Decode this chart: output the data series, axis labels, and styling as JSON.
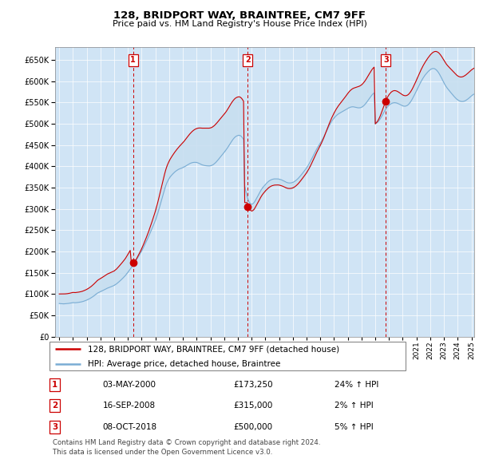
{
  "title": "128, BRIDPORT WAY, BRAINTREE, CM7 9FF",
  "subtitle": "Price paid vs. HM Land Registry's House Price Index (HPI)",
  "legend_line1": "128, BRIDPORT WAY, BRAINTREE, CM7 9FF (detached house)",
  "legend_line2": "HPI: Average price, detached house, Braintree",
  "footer1": "Contains HM Land Registry data © Crown copyright and database right 2024.",
  "footer2": "This data is licensed under the Open Government Licence v3.0.",
  "sales": [
    {
      "label": "1",
      "date": "03-MAY-2000",
      "price": 173250,
      "pct": "24%",
      "dir": "↑",
      "x": 2000.37
    },
    {
      "label": "2",
      "date": "16-SEP-2008",
      "price": 315000,
      "pct": "2%",
      "dir": "↑",
      "x": 2008.71
    },
    {
      "label": "3",
      "date": "08-OCT-2018",
      "price": 500000,
      "pct": "5%",
      "dir": "↑",
      "x": 2018.77
    }
  ],
  "red_color": "#cc0000",
  "blue_color": "#7aadd4",
  "fill_blue": "#d0e4f5",
  "ylim": [
    0,
    680000
  ],
  "ytick_step": 50000,
  "xlim_left": 1994.7,
  "xlim_right": 2025.2,
  "background_color": "#e8f0f8",
  "hpi_monthly": [
    78000,
    77800,
    77600,
    77400,
    77300,
    77500,
    77700,
    78000,
    78300,
    78700,
    79100,
    79600,
    80100,
    80000,
    79900,
    80100,
    80400,
    80800,
    81200,
    81700,
    82300,
    83100,
    84000,
    85000,
    86100,
    87300,
    88600,
    90100,
    91700,
    93500,
    95400,
    97400,
    99500,
    101700,
    103400,
    104600,
    105900,
    107200,
    108500,
    109800,
    111200,
    112600,
    114000,
    115000,
    116100,
    117200,
    118300,
    119400,
    120600,
    122300,
    124100,
    126300,
    128600,
    131000,
    133500,
    136100,
    138800,
    141600,
    144500,
    147900,
    151400,
    155000,
    158700,
    162500,
    166400,
    170400,
    174500,
    178700,
    183000,
    187400,
    191900,
    196500,
    201200,
    206500,
    212000,
    217600,
    223300,
    229100,
    235100,
    241200,
    247400,
    253700,
    260100,
    266600,
    273300,
    281100,
    289200,
    298400,
    307700,
    317100,
    326600,
    336100,
    345700,
    354300,
    361300,
    366700,
    371500,
    375600,
    378800,
    381800,
    384500,
    387000,
    389200,
    391100,
    392800,
    394100,
    395200,
    396000,
    397200,
    398500,
    400100,
    401800,
    403500,
    405100,
    406500,
    407700,
    408600,
    409200,
    409500,
    409500,
    409100,
    408400,
    407300,
    406000,
    404500,
    403400,
    402600,
    402000,
    401600,
    401400,
    401200,
    401100,
    401400,
    402100,
    403400,
    405200,
    407400,
    410000,
    413000,
    416200,
    419500,
    422900,
    426200,
    429500,
    432900,
    436200,
    439800,
    443700,
    447800,
    452100,
    456400,
    460500,
    464200,
    467400,
    469800,
    471400,
    472500,
    473000,
    472400,
    470500,
    467300,
    463000,
    354000,
    341000,
    330000,
    321500,
    315800,
    312500,
    311200,
    312000,
    314500,
    318500,
    323200,
    328200,
    333200,
    338200,
    343200,
    347500,
    351200,
    354300,
    357500,
    360200,
    362900,
    365200,
    367000,
    368400,
    369500,
    370200,
    370600,
    370700,
    370600,
    370500,
    370100,
    369400,
    368500,
    367300,
    365900,
    364500,
    363200,
    362000,
    361300,
    361000,
    361100,
    361600,
    362500,
    363800,
    365500,
    367600,
    370000,
    372700,
    375700,
    378900,
    382200,
    385700,
    389200,
    392700,
    396400,
    400600,
    405100,
    410000,
    415200,
    420500,
    425900,
    431300,
    436500,
    441500,
    446200,
    450500,
    454700,
    459200,
    464100,
    469400,
    474900,
    480500,
    486100,
    491600,
    496800,
    501600,
    506000,
    509900,
    513400,
    516500,
    519200,
    521500,
    523500,
    525200,
    526700,
    528200,
    529600,
    531100,
    532700,
    534400,
    536000,
    537500,
    538700,
    539500,
    539900,
    539800,
    539200,
    538500,
    537900,
    537500,
    537500,
    537800,
    538800,
    540400,
    542700,
    545500,
    548700,
    552300,
    556100,
    559900,
    563700,
    567200,
    570200,
    572500,
    500000,
    501500,
    503500,
    506500,
    510200,
    514600,
    519400,
    524200,
    529100,
    533700,
    537700,
    540900,
    543600,
    545700,
    547300,
    548500,
    549200,
    549400,
    549100,
    548400,
    547300,
    546100,
    544700,
    543300,
    542100,
    541400,
    541300,
    541900,
    543200,
    545400,
    548500,
    552200,
    556600,
    561500,
    566700,
    572000,
    577500,
    583100,
    588700,
    594100,
    599200,
    604000,
    608400,
    612400,
    616000,
    619200,
    622100,
    624700,
    627000,
    628700,
    629700,
    629800,
    629000,
    627200,
    624500,
    621000,
    616800,
    612000,
    606800,
    601300,
    596000,
    591200,
    586900,
    583100,
    579700,
    576400,
    573200,
    570000,
    566800,
    563700,
    560800,
    558200,
    556100,
    554400,
    553200,
    552500,
    552300,
    552600,
    553400,
    554700,
    556500,
    558500,
    560800,
    563200,
    565600,
    567700,
    569400,
    570600
  ],
  "red_monthly": [
    100500,
    100500,
    100500,
    100500,
    100500,
    100700,
    100900,
    101200,
    101600,
    102100,
    102700,
    103400,
    104100,
    103900,
    103700,
    104000,
    104300,
    104800,
    105300,
    105900,
    106600,
    107600,
    108700,
    109900,
    111200,
    112700,
    114400,
    116300,
    118300,
    120600,
    123100,
    125700,
    128400,
    131200,
    133400,
    135000,
    136600,
    138300,
    140000,
    141700,
    143500,
    145300,
    147100,
    148400,
    149600,
    150800,
    152000,
    153200,
    154500,
    156600,
    158900,
    161700,
    164700,
    167800,
    171000,
    174200,
    177500,
    180900,
    184600,
    189000,
    193500,
    198100,
    202800,
    173250,
    173250,
    173250,
    176000,
    180700,
    185500,
    190600,
    195800,
    201200,
    206700,
    212800,
    219200,
    225700,
    232400,
    239300,
    246500,
    254100,
    261900,
    269900,
    278100,
    286500,
    295200,
    304800,
    314700,
    325600,
    336700,
    348000,
    359400,
    370700,
    381600,
    391500,
    399900,
    406500,
    412300,
    417400,
    421700,
    425900,
    429900,
    433700,
    437300,
    440700,
    444000,
    447100,
    450000,
    452700,
    455600,
    458700,
    462100,
    465600,
    469200,
    472700,
    476000,
    479000,
    481700,
    484000,
    486000,
    487600,
    488800,
    489600,
    490000,
    490100,
    489800,
    489700,
    489700,
    489700,
    489700,
    489700,
    489700,
    489700,
    490300,
    491200,
    492700,
    494700,
    497100,
    499900,
    503000,
    506300,
    509600,
    512900,
    516100,
    519200,
    522500,
    525700,
    529400,
    533600,
    538000,
    542600,
    547100,
    551200,
    554800,
    557900,
    560300,
    561900,
    562900,
    563400,
    562600,
    560500,
    557100,
    552600,
    315000,
    315000,
    315000,
    306000,
    300500,
    297000,
    295200,
    296100,
    298600,
    302700,
    307500,
    312500,
    317500,
    322600,
    327600,
    331900,
    335700,
    338900,
    342200,
    344900,
    347800,
    350100,
    352000,
    353500,
    354700,
    355500,
    356100,
    356300,
    356300,
    356400,
    356100,
    355400,
    354600,
    353600,
    352300,
    351100,
    349900,
    348800,
    348200,
    348000,
    348200,
    348700,
    349600,
    350900,
    352700,
    354900,
    357400,
    360200,
    363400,
    366800,
    370300,
    373900,
    377500,
    381200,
    385000,
    389300,
    393900,
    399100,
    404500,
    410200,
    416100,
    422100,
    427900,
    433600,
    439100,
    444200,
    449200,
    454600,
    460500,
    466900,
    473700,
    480600,
    487700,
    494700,
    501500,
    508000,
    514100,
    519700,
    525100,
    530100,
    534800,
    539000,
    542900,
    546500,
    549900,
    553300,
    556700,
    560200,
    563800,
    567600,
    571200,
    574600,
    577600,
    580000,
    582000,
    583500,
    584400,
    585300,
    586100,
    587000,
    588100,
    589500,
    591400,
    593900,
    597000,
    600600,
    604600,
    609000,
    613600,
    618100,
    622600,
    626700,
    630200,
    632900,
    500000,
    502600,
    506000,
    510700,
    516400,
    523000,
    530400,
    537900,
    545400,
    552500,
    558800,
    563900,
    568200,
    571700,
    574400,
    576400,
    577600,
    577900,
    577500,
    576500,
    575000,
    573200,
    571300,
    569400,
    567700,
    566500,
    565900,
    566100,
    567100,
    569000,
    572000,
    575700,
    580200,
    585300,
    590900,
    596700,
    602800,
    609000,
    615200,
    621200,
    626900,
    632300,
    637400,
    642100,
    646500,
    650600,
    654500,
    658100,
    661500,
    664400,
    666800,
    668600,
    669600,
    669800,
    669000,
    667400,
    664900,
    661600,
    657700,
    653300,
    648700,
    644400,
    640400,
    637000,
    634000,
    631200,
    628400,
    625600,
    622700,
    619800,
    617000,
    614500,
    612400,
    610900,
    610000,
    609800,
    610200,
    611200,
    612700,
    614500,
    616700,
    619000,
    621500,
    624000,
    626400,
    628400,
    630100,
    631300
  ]
}
